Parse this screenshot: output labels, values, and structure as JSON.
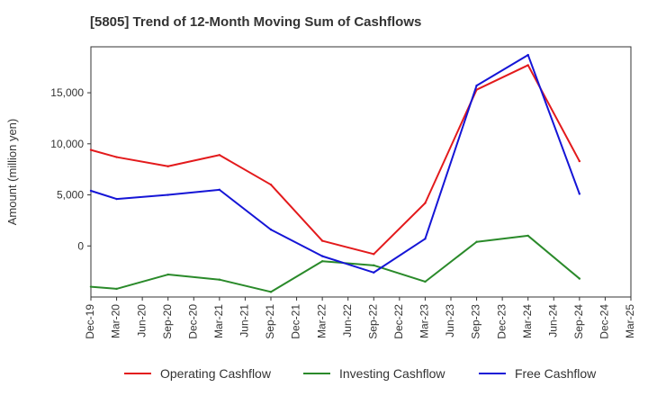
{
  "chart_data": {
    "type": "line",
    "title": "[5805]  Trend of 12-Month Moving Sum of Cashflows",
    "xlabel": "",
    "ylabel": "Amount (million yen)",
    "x_ticks": [
      "Dec-19",
      "Mar-20",
      "Jun-20",
      "Sep-20",
      "Dec-20",
      "Mar-21",
      "Jun-21",
      "Sep-21",
      "Dec-21",
      "Mar-22",
      "Jun-22",
      "Sep-22",
      "Dec-22",
      "Mar-23",
      "Jun-23",
      "Sep-23",
      "Dec-23",
      "Mar-24",
      "Jun-24",
      "Sep-24",
      "Dec-24",
      "Mar-25"
    ],
    "y_ticks": [
      0,
      5000,
      10000,
      15000
    ],
    "y_tick_labels": [
      "0",
      "5,000",
      "10,000",
      "15,000"
    ],
    "ylim": [
      -5000,
      19500
    ],
    "grid": true,
    "legend_position": "bottom",
    "series": [
      {
        "name": "Operating Cashflow",
        "color": "#e31a1c",
        "x": [
          "Dec-19",
          "Mar-20",
          "Sep-20",
          "Mar-21",
          "Sep-21",
          "Mar-22",
          "Sep-22",
          "Mar-23",
          "Sep-23",
          "Mar-24",
          "Sep-24"
        ],
        "values": [
          9400,
          8700,
          7800,
          8900,
          6000,
          500,
          -800,
          4200,
          15300,
          17700,
          8300
        ]
      },
      {
        "name": "Investing Cashflow",
        "color": "#2a8a2a",
        "x": [
          "Dec-19",
          "Mar-20",
          "Sep-20",
          "Mar-21",
          "Sep-21",
          "Mar-22",
          "Sep-22",
          "Mar-23",
          "Sep-23",
          "Mar-24",
          "Sep-24"
        ],
        "values": [
          -4000,
          -4200,
          -2800,
          -3300,
          -4500,
          -1500,
          -1900,
          -3500,
          400,
          1000,
          -3200
        ]
      },
      {
        "name": "Free Cashflow",
        "color": "#1515d6",
        "x": [
          "Dec-19",
          "Mar-20",
          "Sep-20",
          "Mar-21",
          "Sep-21",
          "Mar-22",
          "Sep-22",
          "Mar-23",
          "Sep-23",
          "Mar-24",
          "Sep-24"
        ],
        "values": [
          5400,
          4600,
          5000,
          5500,
          1600,
          -1000,
          -2600,
          700,
          15700,
          18700,
          5100
        ]
      }
    ]
  }
}
